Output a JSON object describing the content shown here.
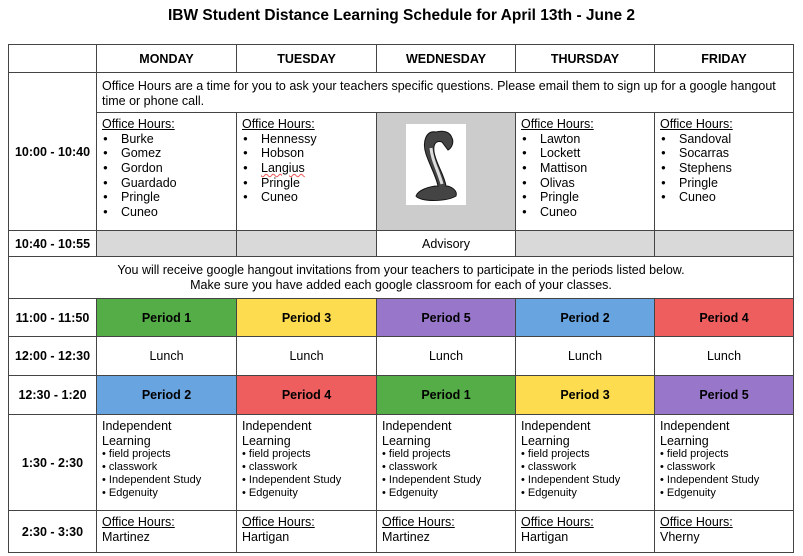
{
  "title": "IBW Student Distance Learning Schedule for April 13th - June 2",
  "days": [
    "MONDAY",
    "TUESDAY",
    "WEDNESDAY",
    "THURSDAY",
    "FRIDAY"
  ],
  "note_office_hours": "Office Hours are a time for you to ask your teachers specific questions.  Please email them to sign up for a google hangout time or phone call.",
  "office_hours_label": "Office Hours:",
  "rows": {
    "r1": {
      "time": "10:00 - 10:40",
      "monday": [
        "Burke",
        "Gomez",
        "Gordon",
        "Guardado",
        "Pringle",
        "Cuneo"
      ],
      "tuesday": [
        "Hennessy",
        "Hobson",
        "Langius",
        "Pringle",
        "Cuneo"
      ],
      "wednesday_image": "cobra-mascot",
      "thursday": [
        "Lawton",
        "Lockett",
        "Mattison",
        "Olivas",
        "Pringle",
        "Cuneo"
      ],
      "friday": [
        "Sandoval",
        "Socarras",
        "Stephens",
        "Pringle",
        "Cuneo"
      ]
    },
    "r2": {
      "time": "10:40 - 10:55",
      "wednesday": "Advisory"
    },
    "r3": {
      "time": "11:00 - 11:50",
      "periods": [
        "Period 1",
        "Period 3",
        "Period 5",
        "Period 2",
        "Period 4"
      ]
    },
    "r4": {
      "time": "12:00 - 12:30",
      "lunch": "Lunch"
    },
    "r5": {
      "time": "12:30 - 1:20",
      "periods": [
        "Period 2",
        "Period 4",
        "Period 1",
        "Period 3",
        "Period 5"
      ]
    },
    "r6": {
      "time": "1:30 - 2:30",
      "heading1": "Independent",
      "heading2": "Learning",
      "items": [
        "field projects",
        "classwork",
        "Independent Study",
        "Edgenuity"
      ]
    },
    "r7": {
      "time": "2:30 - 3:30",
      "teachers": [
        "Martinez",
        "Hartigan",
        "Martinez",
        "Hartigan",
        "Vherny"
      ]
    }
  },
  "invite_note_1": "You will receive google hangout invitations from your teachers to participate in the periods listed below.",
  "invite_note_2": "Make sure you have added each google classroom for each of your classes.",
  "period_colors": {
    "Period 1": "#55ad47",
    "Period 2": "#68a4e0",
    "Period 3": "#fddc4f",
    "Period 4": "#ef5e5e",
    "Period 5": "#9877cb"
  }
}
